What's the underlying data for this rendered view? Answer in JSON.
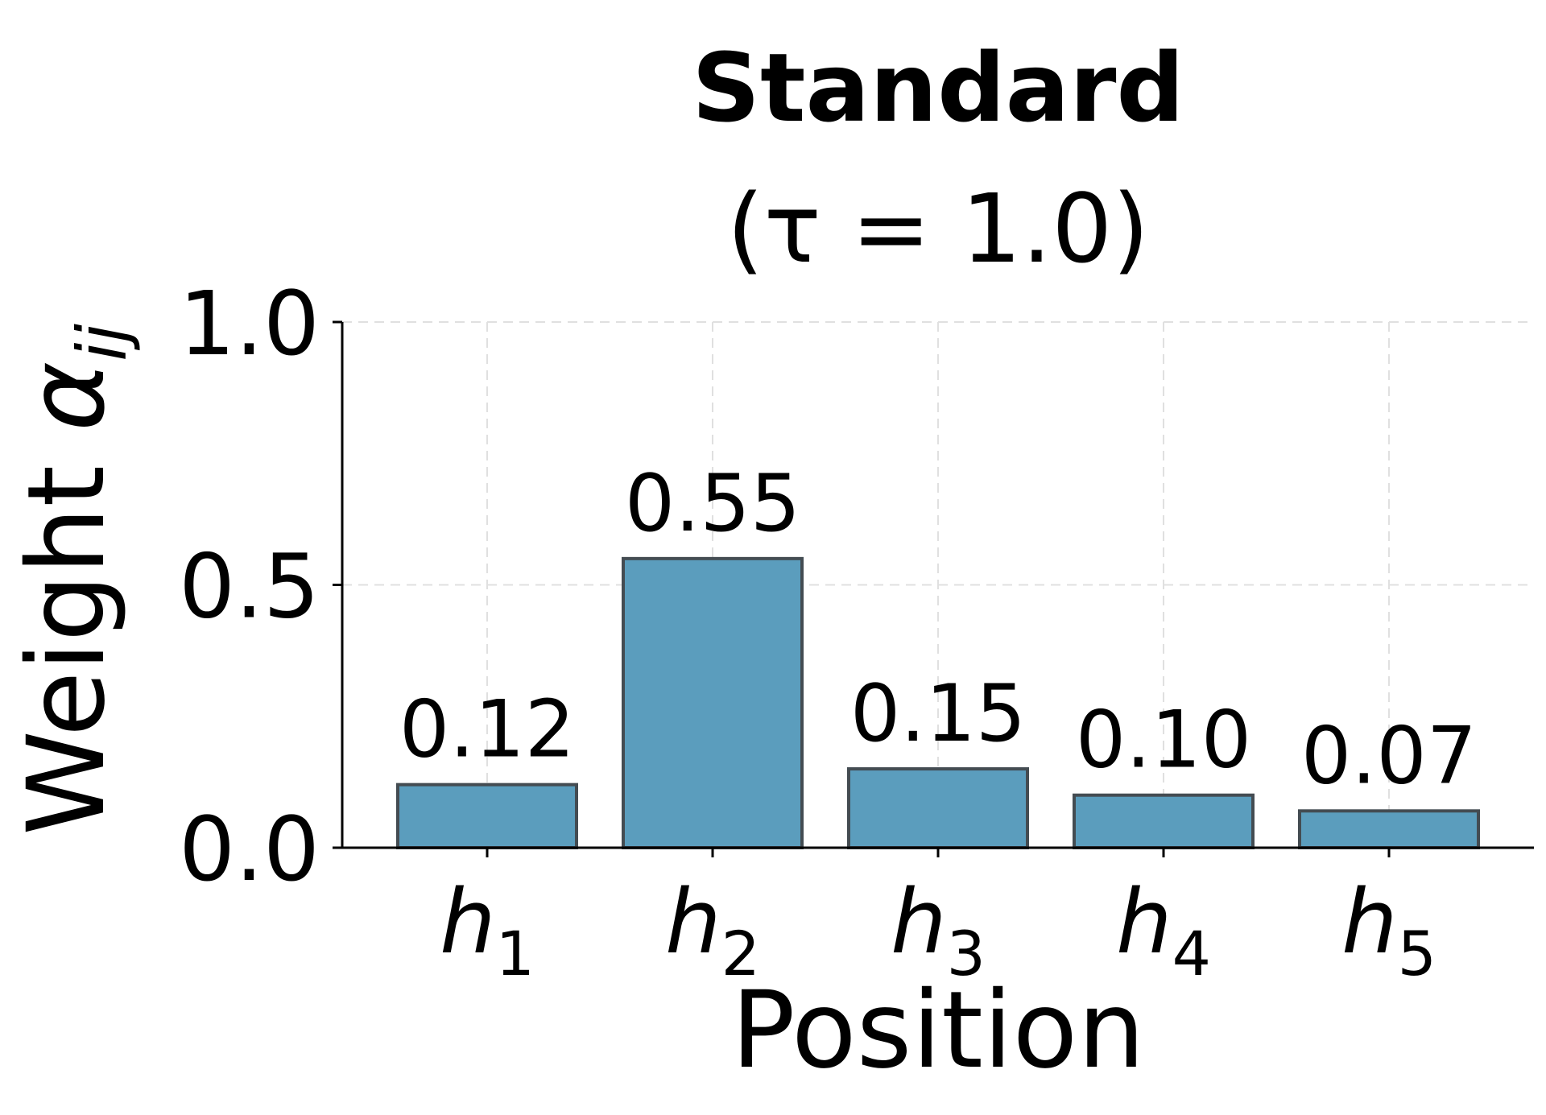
{
  "chart_data": {
    "type": "bar",
    "title": "Standard",
    "subtitle": "(τ = 1.0)",
    "xlabel": "Position",
    "ylabel": "Weight α",
    "ylabel_subscript": "ij",
    "categories": [
      {
        "base": "h",
        "sub": "1"
      },
      {
        "base": "h",
        "sub": "2"
      },
      {
        "base": "h",
        "sub": "3"
      },
      {
        "base": "h",
        "sub": "4"
      },
      {
        "base": "h",
        "sub": "5"
      }
    ],
    "values": [
      0.12,
      0.55,
      0.15,
      0.1,
      0.07
    ],
    "data_labels": [
      "0.12",
      "0.55",
      "0.15",
      "0.10",
      "0.07"
    ],
    "ylim": [
      0,
      1.0
    ],
    "yticks": [
      0.0,
      0.5,
      1.0
    ],
    "ytick_labels": [
      "0.0",
      "0.5",
      "1.0"
    ],
    "grid": true,
    "bar_color": "#5b9dbd",
    "bar_edge_color": "#444c52"
  }
}
